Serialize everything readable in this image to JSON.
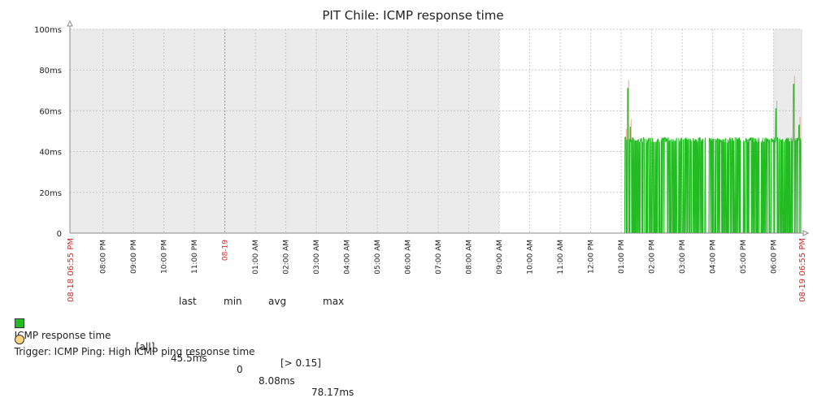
{
  "chart_data": {
    "type": "line",
    "title": "PIT Chile: ICMP response time",
    "y_ticks": [
      "0",
      "20ms",
      "40ms",
      "60ms",
      "80ms",
      "100ms"
    ],
    "ylim": [
      0,
      100
    ],
    "y_unit": "ms",
    "x_start_label": "08-18 06:55 PM",
    "x_end_label": "08-19 06:55 PM",
    "x_ticks": [
      {
        "hour": 1.0833,
        "label": "08:00 PM",
        "red": false
      },
      {
        "hour": 2.0833,
        "label": "09:00 PM",
        "red": false
      },
      {
        "hour": 3.0833,
        "label": "10:00 PM",
        "red": false
      },
      {
        "hour": 4.0833,
        "label": "11:00 PM",
        "red": false
      },
      {
        "hour": 5.0833,
        "label": "08-19",
        "red": true
      },
      {
        "hour": 6.0833,
        "label": "01:00 AM",
        "red": false
      },
      {
        "hour": 7.0833,
        "label": "02:00 AM",
        "red": false
      },
      {
        "hour": 8.0833,
        "label": "03:00 AM",
        "red": false
      },
      {
        "hour": 9.0833,
        "label": "04:00 AM",
        "red": false
      },
      {
        "hour": 10.0833,
        "label": "05:00 AM",
        "red": false
      },
      {
        "hour": 11.0833,
        "label": "06:00 AM",
        "red": false
      },
      {
        "hour": 12.0833,
        "label": "07:00 AM",
        "red": false
      },
      {
        "hour": 13.0833,
        "label": "08:00 AM",
        "red": false
      },
      {
        "hour": 14.0833,
        "label": "09:00 AM",
        "red": false
      },
      {
        "hour": 15.0833,
        "label": "10:00 AM",
        "red": false
      },
      {
        "hour": 16.0833,
        "label": "11:00 AM",
        "red": false
      },
      {
        "hour": 17.0833,
        "label": "12:00 PM",
        "red": false
      },
      {
        "hour": 18.0833,
        "label": "01:00 PM",
        "red": false
      },
      {
        "hour": 19.0833,
        "label": "02:00 PM",
        "red": false
      },
      {
        "hour": 20.0833,
        "label": "03:00 PM",
        "red": false
      },
      {
        "hour": 21.0833,
        "label": "04:00 PM",
        "red": false
      },
      {
        "hour": 22.0833,
        "label": "05:00 PM",
        "red": false
      },
      {
        "hour": 23.0833,
        "label": "06:00 PM",
        "red": false
      }
    ],
    "shaded_periods_hours": [
      [
        0,
        14.08
      ],
      [
        23.08,
        24
      ]
    ],
    "series": [
      {
        "name": "ICMP response time",
        "color": "#22bb22",
        "baseline": {
          "from_hour": 0,
          "to_hour": 18.18,
          "value": 0
        },
        "active": {
          "from_hour": 18.2,
          "to_hour": 24,
          "typical": 45.5
        },
        "spikes": [
          {
            "hour": 18.22,
            "value": 47
          },
          {
            "hour": 18.3,
            "value": 71
          },
          {
            "hour": 18.38,
            "value": 52
          },
          {
            "hour": 23.16,
            "value": 61
          },
          {
            "hour": 23.74,
            "value": 73
          },
          {
            "hour": 23.92,
            "value": 53
          }
        ]
      }
    ],
    "legend": {
      "columns": {
        "last": "last",
        "min": "min",
        "avg": "avg",
        "max": "max"
      },
      "item": {
        "name": "ICMP response time",
        "func": "[all]",
        "last": "45.5ms",
        "min": "0",
        "avg": "8.08ms",
        "max": "78.17ms",
        "color": "#22bb22"
      },
      "trigger": {
        "label": "Trigger: ICMP Ping: High ICMP ping response time",
        "condition": "[> 0.15]",
        "color": "#ffd37a"
      }
    }
  }
}
